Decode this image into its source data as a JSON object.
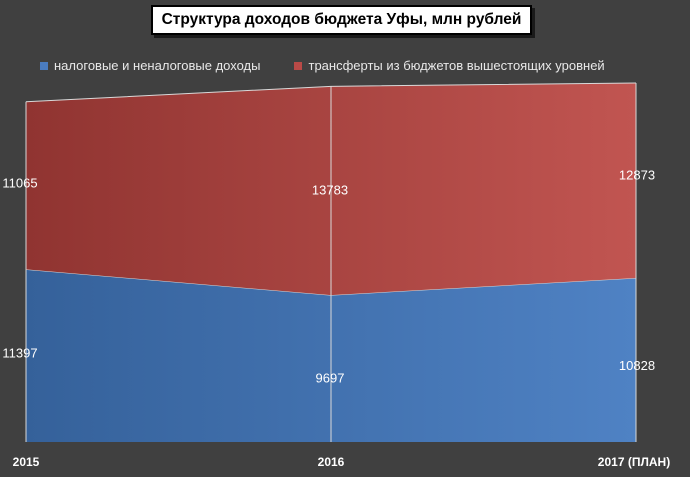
{
  "title": "Структура доходов бюджета Уфы, млн рублей",
  "chart_data": {
    "type": "area",
    "stacked": true,
    "title": "Структура доходов бюджета Уфы, млн рублей",
    "categories": [
      "2015",
      "2016",
      "2017 (ПЛАН)"
    ],
    "series": [
      {
        "name": "налоговые и неналоговые доходы",
        "values": [
          11397,
          9697,
          10828
        ],
        "color": "#4a7cc0"
      },
      {
        "name": "трансферты из бюджетов вышестоящих уровней",
        "values": [
          11065,
          13783,
          12873
        ],
        "color": "#b94a47"
      }
    ],
    "ylim": [
      0,
      23700
    ],
    "legend_position": "top",
    "grid": false,
    "background_color": "#404040",
    "text_color": "#ffffff"
  }
}
